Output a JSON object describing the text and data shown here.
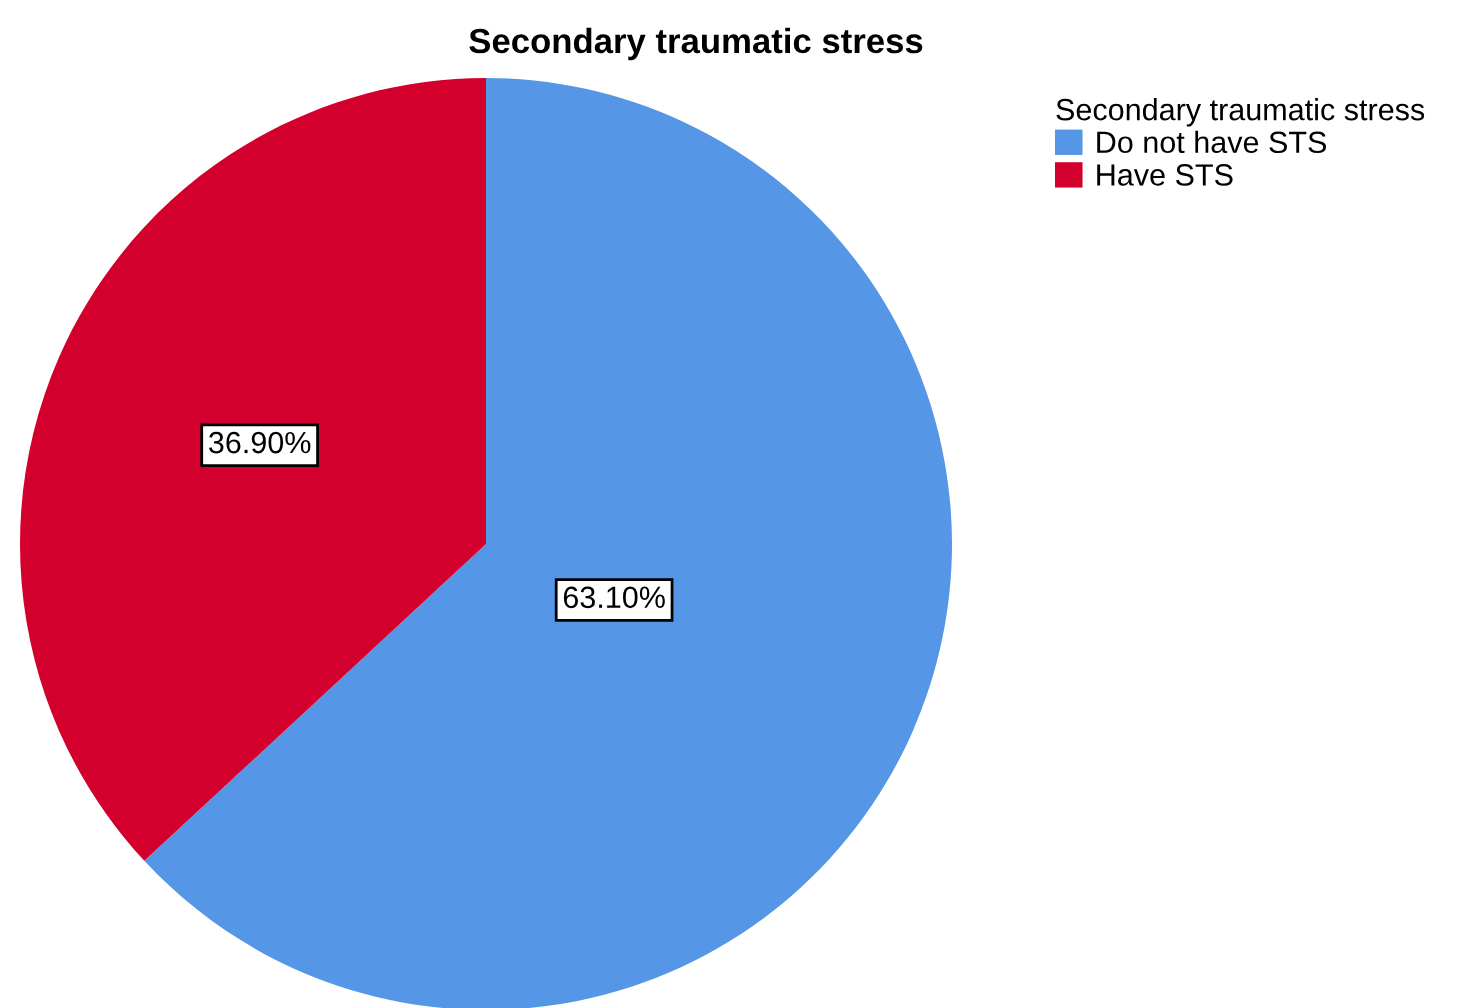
{
  "chart_data": {
    "type": "pie",
    "title": "Secondary traumatic stress",
    "legend_title": "Secondary traumatic stress",
    "categories": [
      "Do not have STS",
      "Have STS"
    ],
    "values": [
      63.1,
      36.9
    ],
    "colors": [
      "#5596e6",
      "#d3002e"
    ],
    "value_labels": [
      "63.10%",
      "36.90%"
    ],
    "legend": "top right"
  }
}
